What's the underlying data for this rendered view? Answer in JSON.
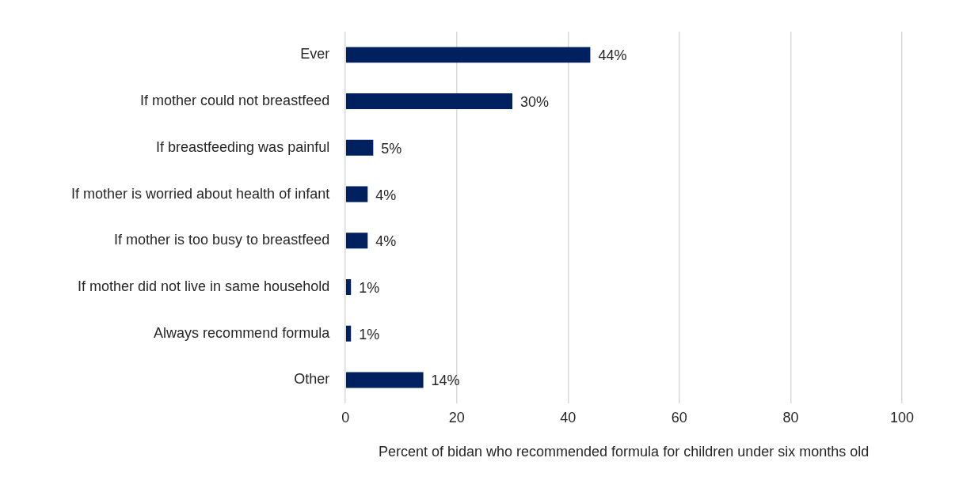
{
  "chart_data": {
    "type": "bar",
    "orientation": "horizontal",
    "categories": [
      "Ever",
      "If mother could not breastfeed",
      "If breastfeeding was painful",
      "If mother is worried about health of infant",
      "If mother is too busy to breastfeed",
      "If mother did not live in same household",
      "Always recommend formula",
      "Other"
    ],
    "values": [
      44,
      30,
      5,
      4,
      4,
      1,
      1,
      14
    ],
    "value_labels": [
      "44%",
      "30%",
      "5%",
      "4%",
      "4%",
      "1%",
      "1%",
      "14%"
    ],
    "color": "#002060",
    "xlabel": "Percent of bidan who recommended formula for children under six months old",
    "xlim": [
      0,
      100
    ],
    "xticks": [
      0,
      20,
      40,
      60,
      80,
      100
    ],
    "grid": "x"
  }
}
